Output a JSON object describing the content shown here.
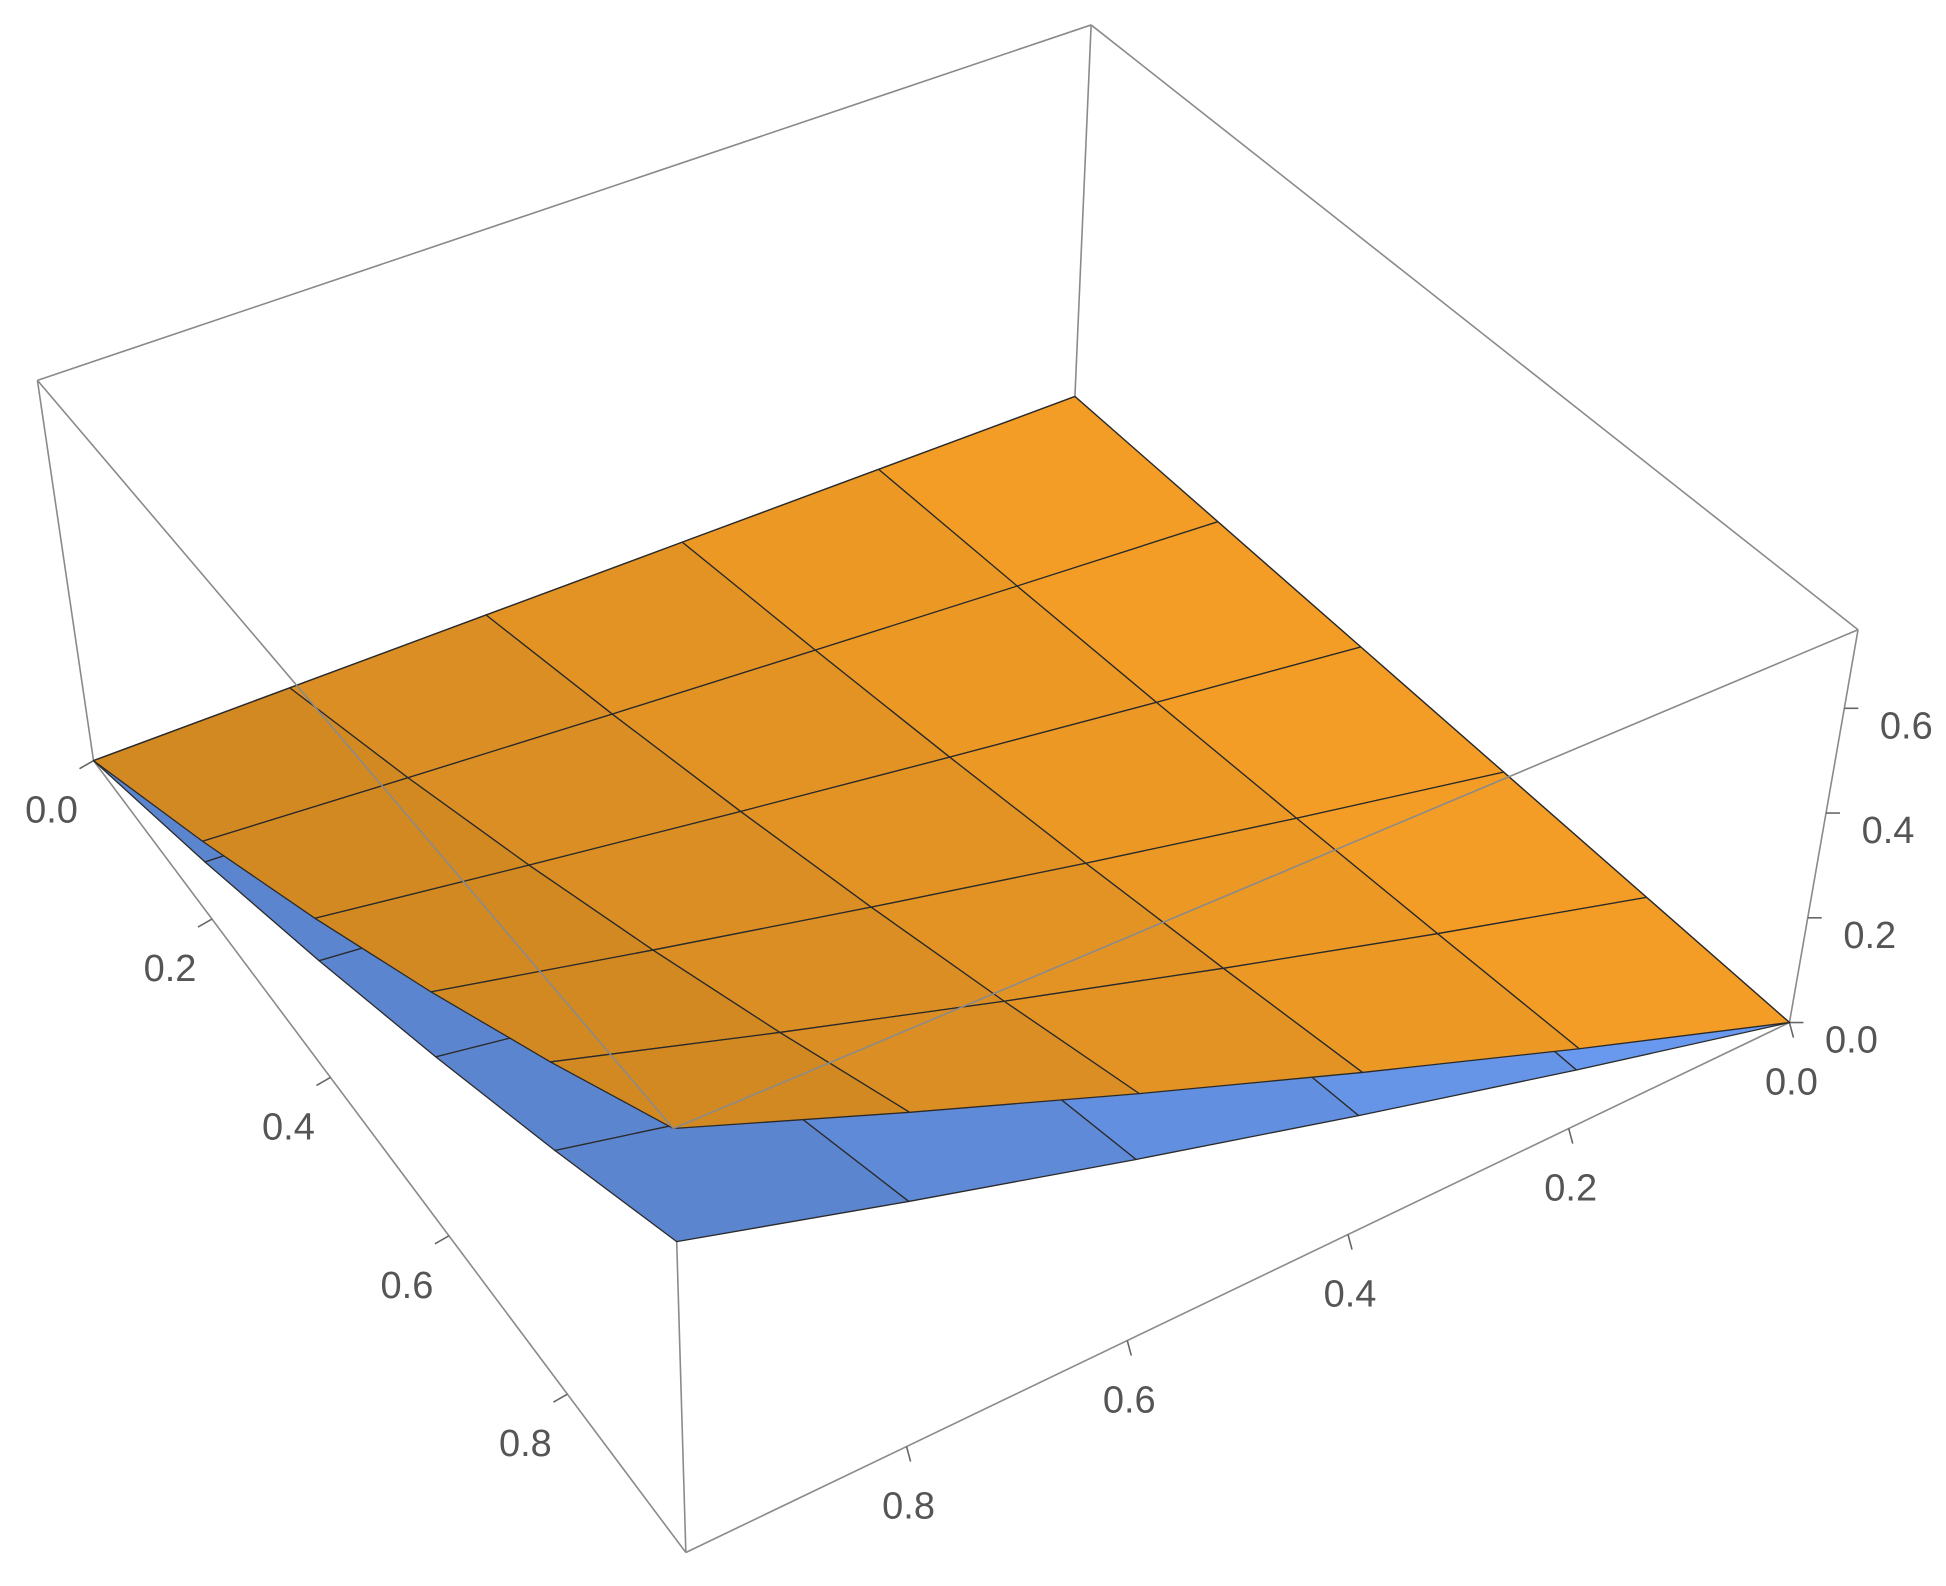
{
  "chart_data": {
    "type": "surface3d",
    "x": [
      0,
      0.2,
      0.4,
      0.6,
      0.8,
      1
    ],
    "y": [
      0,
      0.2,
      0.4,
      0.6,
      0.8,
      1
    ],
    "xlim": [
      0,
      1
    ],
    "ylim": [
      0,
      1
    ],
    "zlim": [
      0,
      0.75
    ],
    "xticks": [
      {
        "value": 0,
        "label": "0.0"
      },
      0.2,
      0.4,
      0.6,
      0.8
    ],
    "yticks": [
      {
        "value": 0,
        "label": "0.0"
      },
      0.2,
      0.4,
      0.6,
      0.8
    ],
    "zticks": [
      {
        "value": 0,
        "label": "0.0"
      },
      0.2,
      0.4,
      0.6
    ],
    "series": [
      {
        "color": "#6b9bf2",
        "z": [
          [
            0,
            0,
            0,
            0,
            0,
            0
          ],
          [
            0,
            0.022,
            0.044,
            0.066,
            0.088,
            0.11
          ],
          [
            0,
            0.044,
            0.088,
            0.132,
            0.176,
            0.22
          ],
          [
            0,
            0.066,
            0.132,
            0.198,
            0.264,
            0.33
          ],
          [
            0,
            0.088,
            0.176,
            0.264,
            0.352,
            0.44
          ],
          [
            0,
            0.11,
            0.22,
            0.33,
            0.44,
            0.55
          ]
        ]
      },
      {
        "color": "#f7a027",
        "z": [
          [
            0,
            0,
            0,
            0,
            0,
            0
          ],
          [
            0,
            0.03,
            0.06,
            0.09,
            0.12,
            0.15
          ],
          [
            0,
            0.06,
            0.12,
            0.18,
            0.24,
            0.3
          ],
          [
            0,
            0.09,
            0.18,
            0.27,
            0.36,
            0.45
          ],
          [
            0,
            0.12,
            0.24,
            0.36,
            0.48,
            0.6
          ],
          [
            0,
            0.15,
            0.3,
            0.45,
            0.6,
            0.75
          ]
        ]
      }
    ]
  }
}
